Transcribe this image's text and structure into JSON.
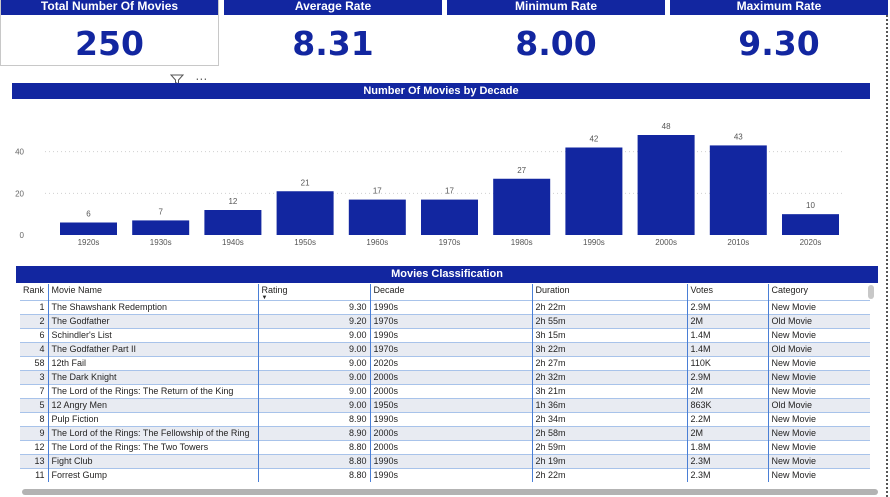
{
  "kpis": [
    {
      "title": "Total Number Of Movies",
      "value": "250"
    },
    {
      "title": "Average Rate",
      "value": "8.31"
    },
    {
      "title": "Minimum Rate",
      "value": "8.00"
    },
    {
      "title": "Maximum Rate",
      "value": "9.30"
    }
  ],
  "visual_icons": {
    "filter": "filter-icon",
    "more": "more-options-icon"
  },
  "chart": {
    "title": "Number Of Movies by Decade"
  },
  "chart_data": {
    "type": "bar",
    "categories": [
      "1920s",
      "1930s",
      "1940s",
      "1950s",
      "1960s",
      "1970s",
      "1980s",
      "1990s",
      "2000s",
      "2010s",
      "2020s"
    ],
    "values": [
      6,
      7,
      12,
      21,
      17,
      17,
      27,
      42,
      48,
      43,
      10
    ],
    "title": "Number Of Movies by Decade",
    "xlabel": "",
    "ylabel": "",
    "ylim": [
      0,
      50
    ],
    "yticks": [
      "0",
      "20",
      "40"
    ],
    "grid": true,
    "color": "#1226A0"
  },
  "table": {
    "title": "Movies Classification",
    "columns": [
      "Rank",
      "Movie Name",
      "Rating",
      "Decade",
      "Duration",
      "Votes",
      "Category"
    ],
    "rows": [
      [
        "1",
        "The Shawshank Redemption",
        "9.30",
        "1990s",
        "2h 22m",
        "2.9M",
        "New Movie"
      ],
      [
        "2",
        "The Godfather",
        "9.20",
        "1970s",
        "2h 55m",
        "2M",
        "Old Movie"
      ],
      [
        "6",
        "Schindler's List",
        "9.00",
        "1990s",
        "3h 15m",
        "1.4M",
        "New Movie"
      ],
      [
        "4",
        "The Godfather Part II",
        "9.00",
        "1970s",
        "3h 22m",
        "1.4M",
        "Old Movie"
      ],
      [
        "58",
        "12th Fail",
        "9.00",
        "2020s",
        "2h 27m",
        "110K",
        "New Movie"
      ],
      [
        "3",
        "The Dark Knight",
        "9.00",
        "2000s",
        "2h 32m",
        "2.9M",
        "New Movie"
      ],
      [
        "7",
        "The Lord of the Rings: The Return of the King",
        "9.00",
        "2000s",
        "3h 21m",
        "2M",
        "New Movie"
      ],
      [
        "5",
        "12 Angry Men",
        "9.00",
        "1950s",
        "1h 36m",
        "863K",
        "Old Movie"
      ],
      [
        "8",
        "Pulp Fiction",
        "8.90",
        "1990s",
        "2h 34m",
        "2.2M",
        "New Movie"
      ],
      [
        "9",
        "The Lord of the Rings: The Fellowship of the Ring",
        "8.90",
        "2000s",
        "2h 58m",
        "2M",
        "New Movie"
      ],
      [
        "12",
        "The Lord of the Rings: The Two Towers",
        "8.80",
        "2000s",
        "2h 59m",
        "1.8M",
        "New Movie"
      ],
      [
        "13",
        "Fight Club",
        "8.80",
        "1990s",
        "2h 19m",
        "2.3M",
        "New Movie"
      ],
      [
        "11",
        "Forrest Gump",
        "8.80",
        "1990s",
        "2h 22m",
        "2.3M",
        "New Movie"
      ]
    ]
  }
}
